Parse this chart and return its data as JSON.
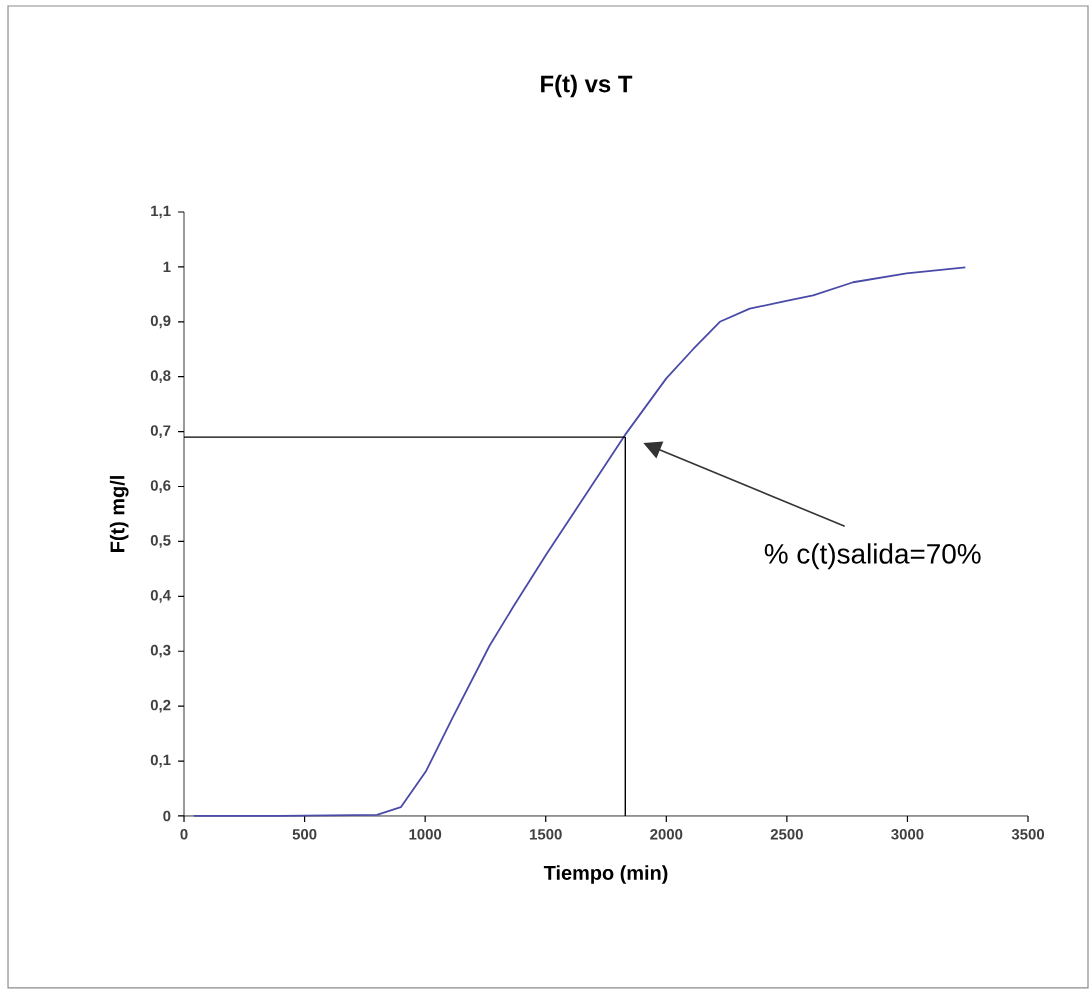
{
  "chart_data": {
    "type": "line",
    "title": "F(t) vs T",
    "xlabel": "Tiempo (min)",
    "ylabel": "F(t) mg/l",
    "xlim": [
      0,
      3500
    ],
    "xticks": [
      0,
      500,
      1000,
      1500,
      2000,
      2500,
      3000,
      3500
    ],
    "ylim": [
      0,
      1.1
    ],
    "yticks": [
      0,
      {
        "value": 0.1,
        "label": "0,1"
      },
      {
        "value": 0.2,
        "label": "0,2"
      },
      {
        "value": 0.3,
        "label": "0,3"
      },
      {
        "value": 0.4,
        "label": "0,4"
      },
      {
        "value": 0.5,
        "label": "0,5"
      },
      {
        "value": 0.6,
        "label": "0,6"
      },
      {
        "value": 0.7,
        "label": "0,7"
      },
      {
        "value": 0.8,
        "label": "0,8"
      },
      {
        "value": 0.9,
        "label": "0,9"
      },
      1,
      {
        "value": 1.1,
        "label": "1,1"
      }
    ],
    "series": [
      {
        "color": "#4a4aa8",
        "x": [
          40,
          400,
          800,
          899,
          1004,
          1115,
          1267,
          1364,
          1502,
          1613,
          1829,
          2000,
          2111,
          2222,
          2346,
          2498,
          2609,
          2775,
          2996,
          3240
        ],
        "values": [
          0,
          0,
          0.002,
          0.016,
          0.082,
          0.18,
          0.31,
          0.38,
          0.476,
          0.55,
          0.694,
          0.797,
          0.85,
          0.9,
          0.924,
          0.938,
          0.948,
          0.972,
          0.988,
          0.999
        ]
      }
    ],
    "ref_lines": [
      {
        "axis": "x",
        "value": 1830,
        "color": "#000000"
      },
      {
        "axis": "y",
        "value": 0.69,
        "color": "#000000"
      }
    ],
    "annotations": [
      "% c(t)salida=70%"
    ],
    "grid": false,
    "marker": "none",
    "line_style": "solid"
  }
}
